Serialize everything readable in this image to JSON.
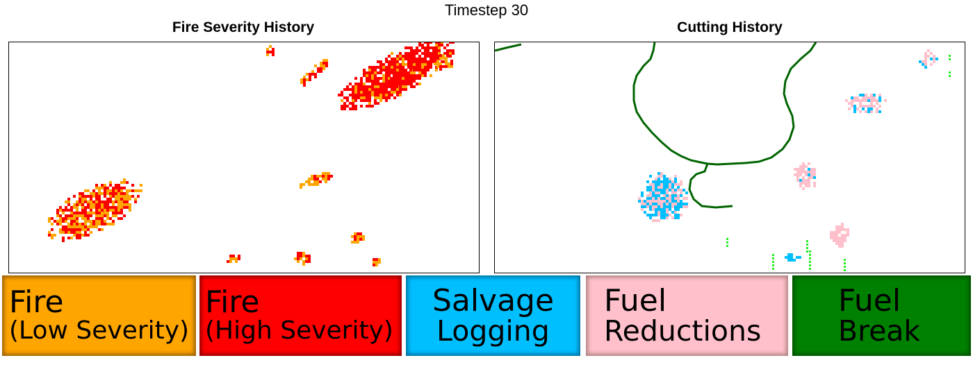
{
  "title": "Timestep 30",
  "panels": {
    "fire": {
      "title": "Fire Severity History"
    },
    "cutting": {
      "title": "Cutting History"
    }
  },
  "legend": [
    {
      "id": "low",
      "line1": "Fire",
      "line2": "(Low Severity)",
      "color": "#ffa500"
    },
    {
      "id": "high",
      "line1": "Fire",
      "line2": "(High Severity)",
      "color": "#ff0000"
    },
    {
      "id": "salvage",
      "line1": "Salvage",
      "line2": "Logging",
      "color": "#00bfff"
    },
    {
      "id": "fuelred",
      "line1": "Fuel",
      "line2": "Reductions",
      "color": "#ffc0cb"
    },
    {
      "id": "fuelbreak",
      "line1": "Fuel",
      "line2": "Break",
      "color": "#008000"
    }
  ],
  "colors": {
    "fire_low": "#ffa500",
    "fire_high": "#ff0000",
    "salvage_logging": "#00bfff",
    "fuel_reductions": "#ffc0cb",
    "fuel_break_line": "#006400",
    "fuel_break_marks": "#22ee22"
  }
}
